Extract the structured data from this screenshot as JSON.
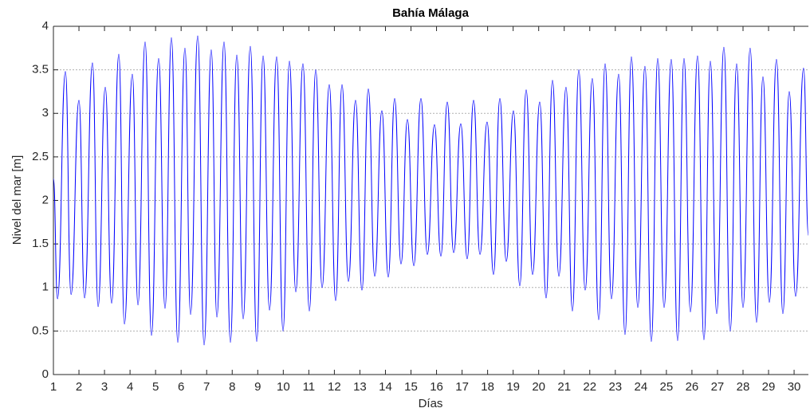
{
  "chart_data": {
    "type": "line",
    "title": "Bahía Málaga",
    "xlabel": "Días",
    "ylabel": "Nivel del mar [m]",
    "x": [
      1.0,
      1.16,
      1.47,
      1.69,
      2.0,
      2.22,
      2.53,
      2.75,
      3.03,
      3.28,
      3.56,
      3.78,
      4.09,
      4.31,
      4.59,
      4.84,
      5.12,
      5.37,
      5.62,
      5.87,
      6.15,
      6.37,
      6.65,
      6.9,
      7.18,
      7.4,
      7.68,
      7.93,
      8.18,
      8.43,
      8.71,
      8.96,
      9.21,
      9.46,
      9.74,
      9.99,
      10.24,
      10.49,
      10.77,
      11.02,
      11.27,
      11.52,
      11.8,
      12.05,
      12.3,
      12.55,
      12.83,
      13.08,
      13.33,
      13.58,
      13.86,
      14.11,
      14.36,
      14.61,
      14.86,
      15.11,
      15.39,
      15.64,
      15.92,
      16.17,
      16.42,
      16.67,
      16.95,
      17.2,
      17.45,
      17.7,
      17.98,
      18.23,
      18.48,
      18.73,
      19.01,
      19.26,
      19.51,
      19.76,
      20.04,
      20.29,
      20.54,
      20.79,
      21.07,
      21.32,
      21.57,
      21.82,
      22.1,
      22.35,
      22.6,
      22.85,
      23.13,
      23.38,
      23.63,
      23.88,
      24.16,
      24.41,
      24.66,
      24.91,
      25.19,
      25.44,
      25.69,
      25.94,
      26.22,
      26.47,
      26.72,
      26.97,
      27.25,
      27.5,
      27.75,
      28.0,
      28.28,
      28.53,
      28.78,
      29.03,
      29.31,
      29.56,
      29.81,
      30.06,
      30.37,
      30.56
    ],
    "series": [
      {
        "color": "#0000ff",
        "values": [
          2.25,
          0.87,
          3.48,
          0.92,
          3.15,
          0.88,
          3.58,
          0.78,
          3.3,
          0.82,
          3.68,
          0.58,
          3.45,
          0.8,
          3.82,
          0.45,
          3.63,
          0.76,
          3.87,
          0.37,
          3.75,
          0.69,
          3.89,
          0.34,
          3.73,
          0.66,
          3.82,
          0.37,
          3.67,
          0.64,
          3.77,
          0.38,
          3.66,
          0.74,
          3.65,
          0.5,
          3.6,
          0.95,
          3.57,
          0.73,
          3.5,
          1.0,
          3.33,
          0.85,
          3.33,
          1.07,
          3.15,
          0.97,
          3.28,
          1.13,
          3.03,
          1.12,
          3.17,
          1.27,
          2.93,
          1.25,
          3.17,
          1.38,
          2.87,
          1.36,
          3.13,
          1.4,
          2.88,
          1.33,
          3.15,
          1.38,
          2.9,
          1.15,
          3.17,
          1.3,
          3.03,
          1.02,
          3.27,
          1.15,
          3.13,
          0.88,
          3.38,
          1.13,
          3.3,
          0.73,
          3.5,
          0.97,
          3.4,
          0.63,
          3.57,
          0.87,
          3.45,
          0.46,
          3.65,
          0.77,
          3.54,
          0.38,
          3.63,
          0.77,
          3.62,
          0.39,
          3.63,
          0.72,
          3.66,
          0.4,
          3.6,
          0.7,
          3.76,
          0.5,
          3.57,
          0.77,
          3.75,
          0.6,
          3.42,
          0.83,
          3.62,
          0.7,
          3.25,
          0.9,
          3.52,
          1.6
        ]
      }
    ],
    "xlim": [
      1,
      30.56
    ],
    "ylim": [
      0,
      4
    ],
    "xticks": [
      1,
      2,
      3,
      4,
      5,
      6,
      7,
      8,
      9,
      10,
      11,
      12,
      13,
      14,
      15,
      16,
      17,
      18,
      19,
      20,
      21,
      22,
      23,
      24,
      25,
      26,
      27,
      28,
      29,
      30
    ],
    "yticks": [
      0,
      0.5,
      1,
      1.5,
      2,
      2.5,
      3,
      3.5,
      4
    ],
    "grid": true
  }
}
